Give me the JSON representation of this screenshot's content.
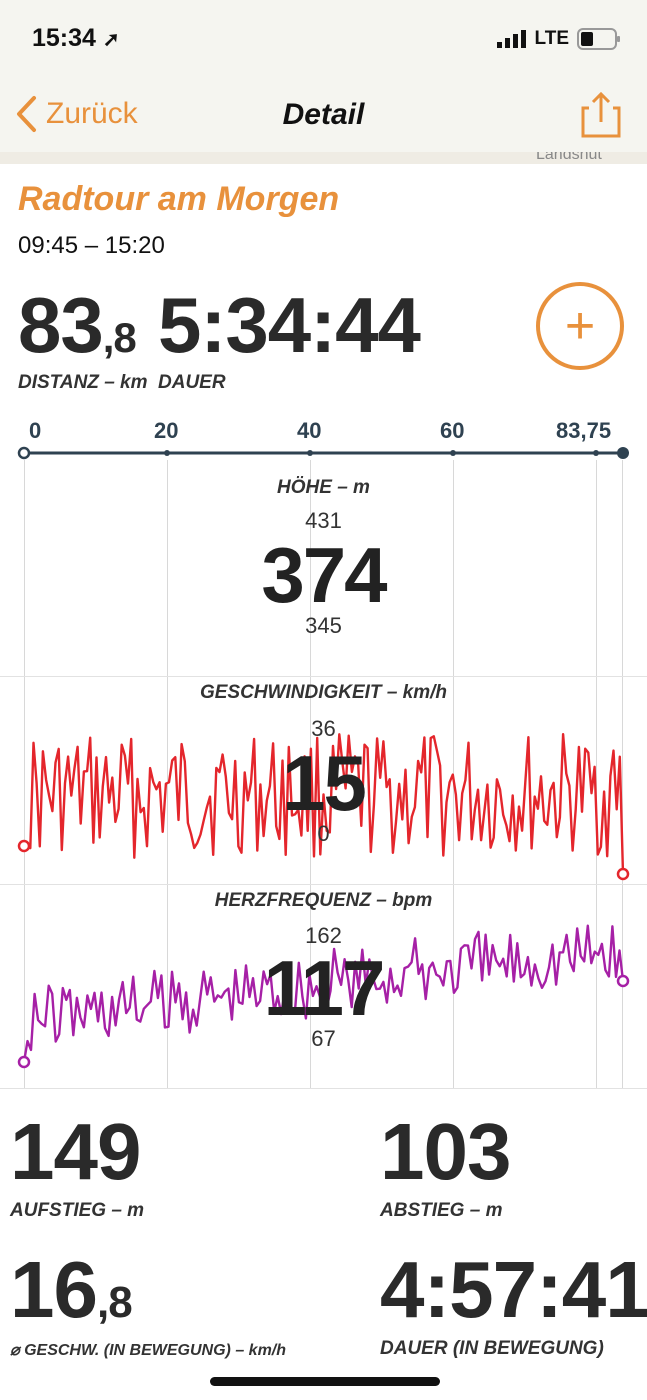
{
  "status": {
    "time": "15:34",
    "carrier": "LTE"
  },
  "nav": {
    "back_label": "Zurück",
    "title": "Detail"
  },
  "map": {
    "label": "Landshut"
  },
  "activity": {
    "title": "Radtour am Morgen",
    "time_range": "09:45 – 15:20"
  },
  "stats": {
    "distance_int": "83",
    "distance_dec": ",8",
    "distance_label": "DISTANZ – km",
    "duration": "5:34:44",
    "duration_label": "DAUER"
  },
  "axis": {
    "ticks": [
      "0",
      "20",
      "40",
      "60",
      "83,75"
    ]
  },
  "charts": {
    "elevation": {
      "title": "HÖHE – m",
      "max": "431",
      "current": "374",
      "min": "345",
      "color": "#1b22c9"
    },
    "speed": {
      "title": "GESCHWINDIGKEIT – km/h",
      "max": "36",
      "current": "15",
      "min": "0",
      "color": "#e4262c"
    },
    "heart": {
      "title": "HERZFREQUENZ – bpm",
      "max": "162",
      "current": "117",
      "min": "67",
      "color": "#a620a6"
    }
  },
  "summary": {
    "ascent": "149",
    "ascent_label": "AUFSTIEG – m",
    "descent": "103",
    "descent_label": "ABSTIEG – m",
    "avg_speed_int": "16",
    "avg_speed_dec": ",8",
    "avg_speed_label": "⌀ GESCHW. (IN BEWEGUNG) – km/h",
    "moving_time": "4:57:41",
    "moving_time_label": "DAUER (IN BEWEGUNG)"
  },
  "colors": {
    "accent": "#e8913c",
    "axis": "#2f4251"
  }
}
